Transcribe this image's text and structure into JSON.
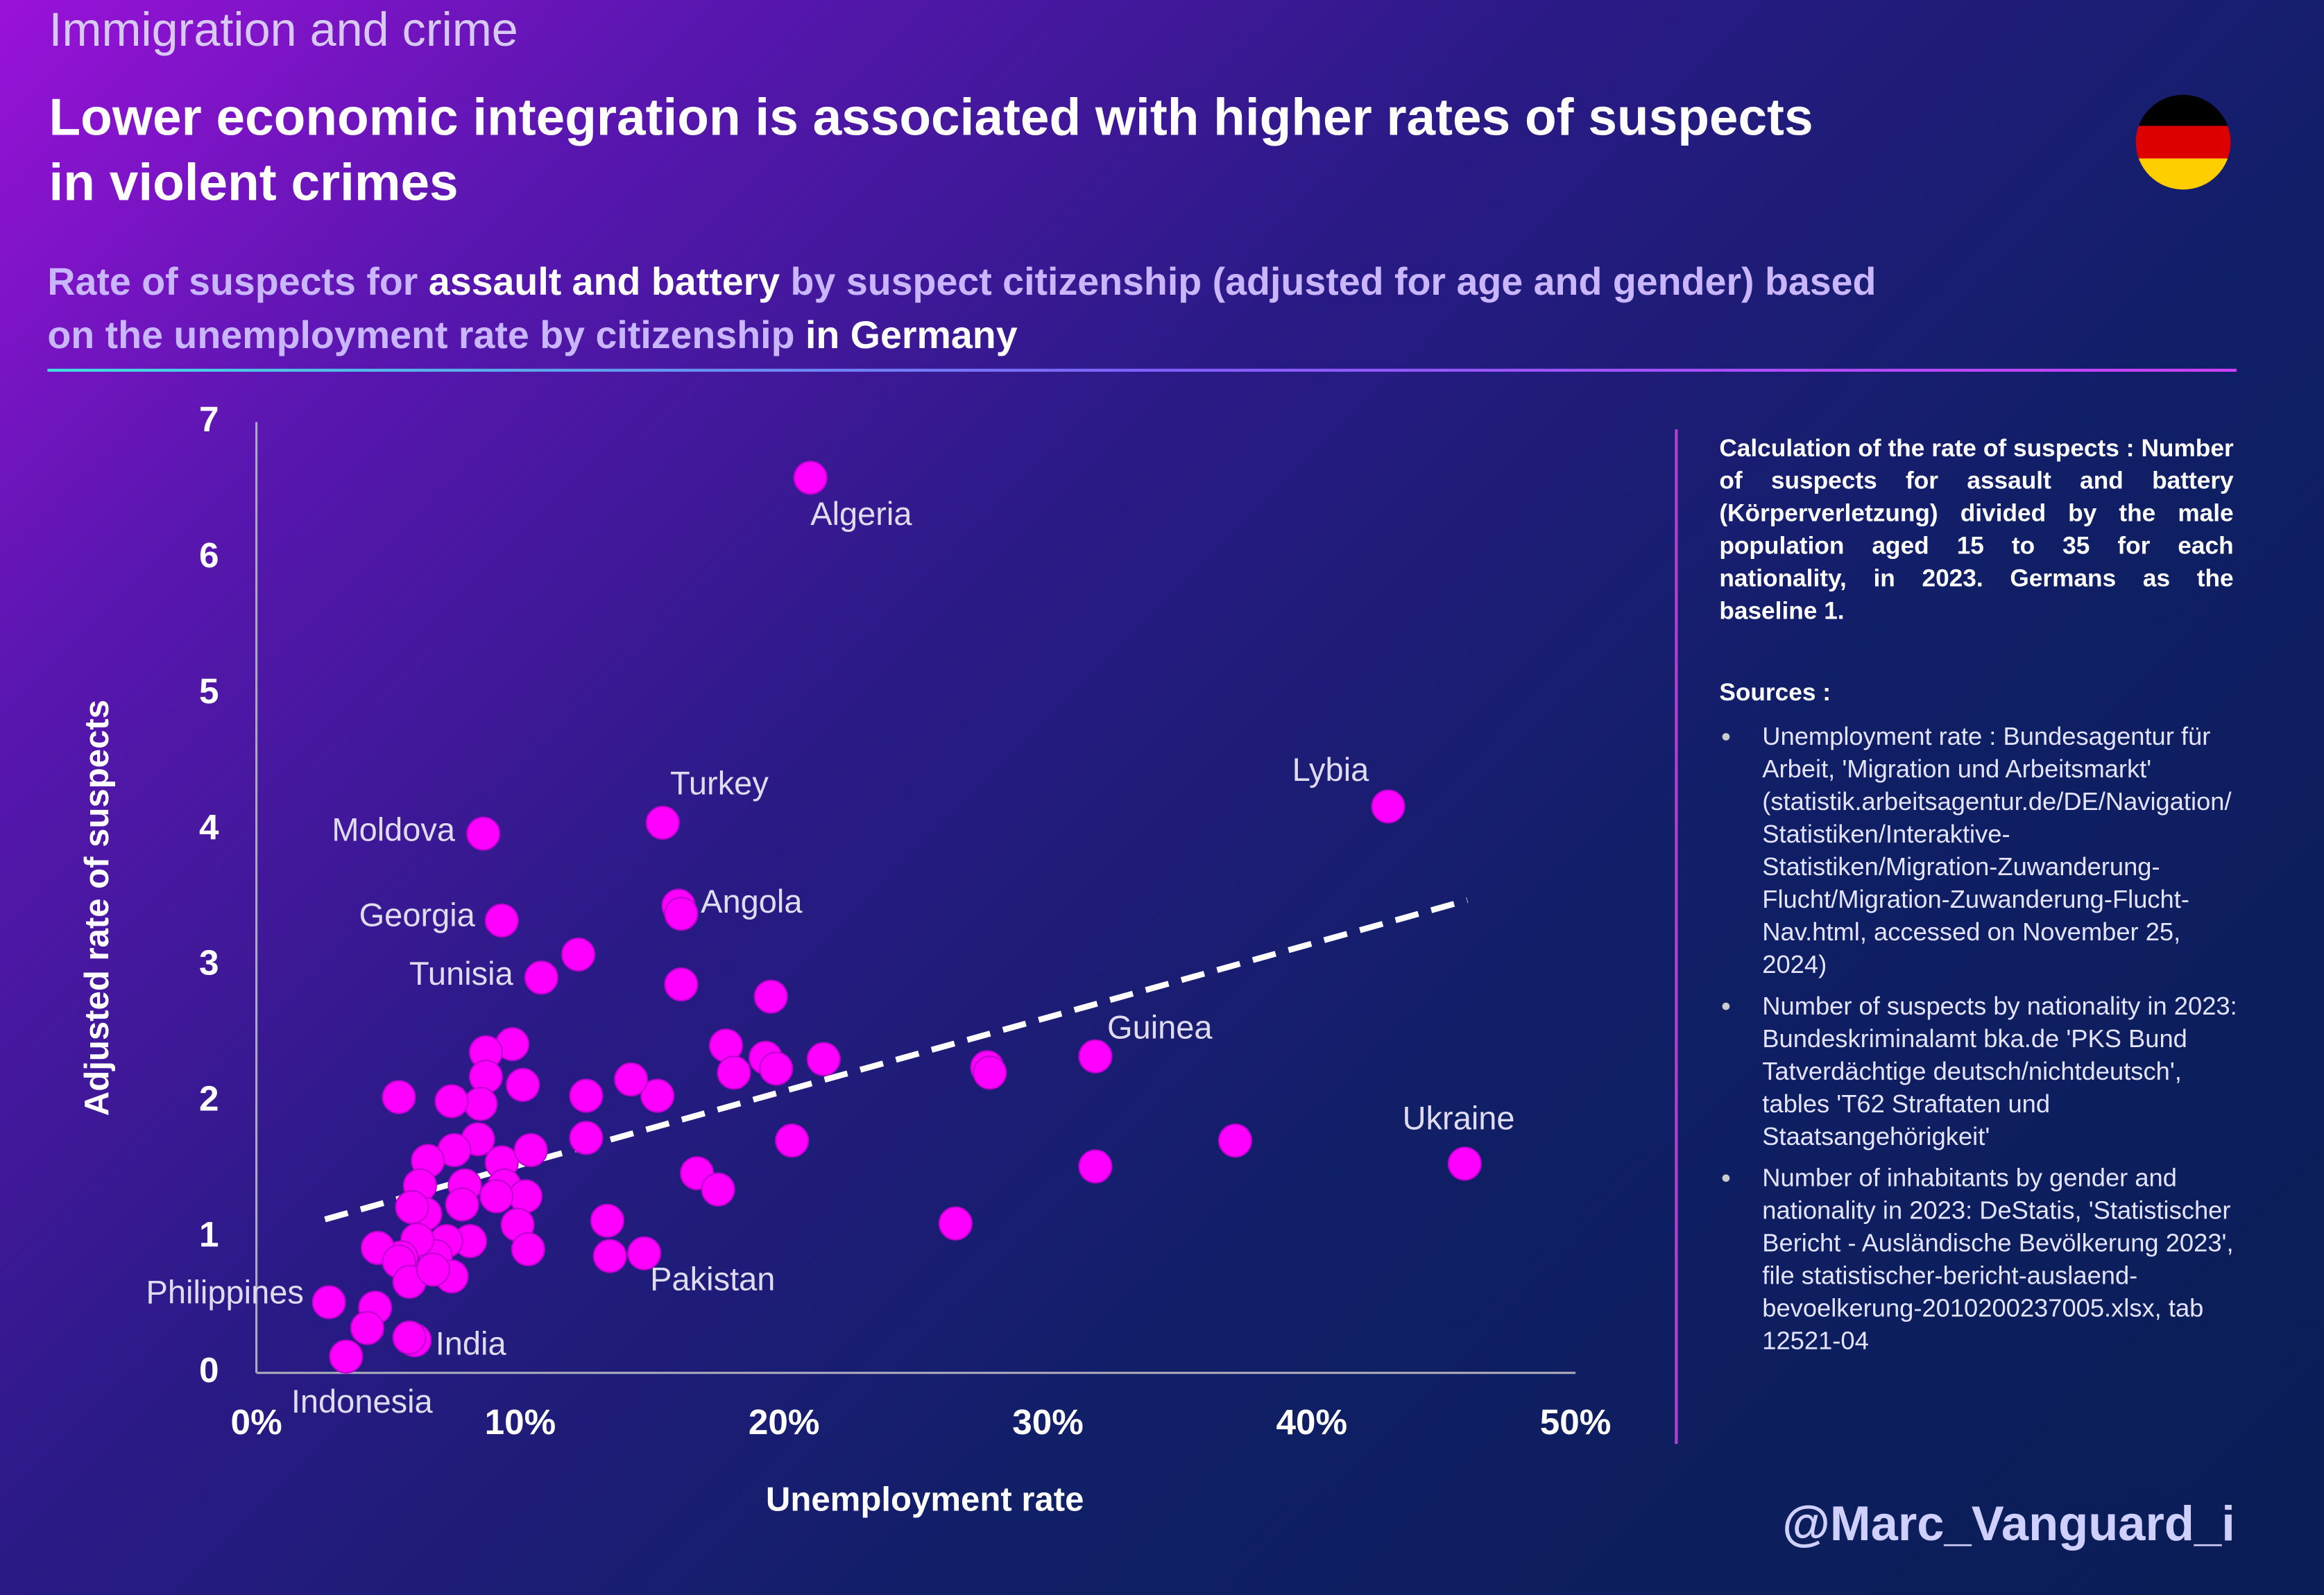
{
  "header": {
    "kicker": "Immigration and crime",
    "title_lines": [
      "Lower economic integration is associated with higher rates of suspects",
      "in violent crimes"
    ],
    "subtitle_lines": [
      [
        {
          "text": "Rate of suspects for ",
          "highlight": false
        },
        {
          "text": "assault and battery",
          "highlight": true
        },
        {
          "text": " by suspect citizenship (adjusted for age and gender) based",
          "highlight": false
        }
      ],
      [
        {
          "text": "on the unemployment rate by citizenship",
          "highlight": false
        },
        {
          "text": " in Germany",
          "highlight": true
        }
      ]
    ]
  },
  "chart_data": {
    "type": "scatter",
    "x_label": "Unemployment rate",
    "y_label": "Adjusted rate of suspects",
    "color": "#ff00ff",
    "xlim": [
      0,
      50
    ],
    "ylim": [
      0,
      7
    ],
    "xticks": [
      {
        "value": 0,
        "label": "0%"
      },
      {
        "value": 10,
        "label": "10%"
      },
      {
        "value": 20,
        "label": "20%"
      },
      {
        "value": 30,
        "label": "30%"
      },
      {
        "value": 40,
        "label": "40%"
      },
      {
        "value": 50,
        "label": "50%"
      }
    ],
    "yticks": [
      0,
      1,
      2,
      3,
      4,
      5,
      6,
      7
    ],
    "x": [
      21.0,
      42.9,
      15.4,
      8.6,
      9.3,
      16.0,
      10.8,
      31.8,
      45.8,
      14.7,
      2.75,
      3.4,
      6.0,
      16.1,
      12.2,
      16.1,
      19.5,
      17.8,
      18.1,
      19.3,
      19.7,
      21.5,
      20.3,
      16.7,
      17.5,
      26.5,
      27.7,
      27.8,
      31.8,
      37.1,
      15.2,
      14.2,
      12.5,
      12.5,
      13.3,
      13.4,
      9.7,
      8.7,
      8.7,
      8.5,
      10.1,
      8.4,
      7.4,
      5.4,
      7.5,
      6.5,
      7.9,
      9.3,
      10.4,
      9.4,
      10.2,
      9.1,
      9.9,
      10.3,
      6.2,
      6.4,
      5.9,
      7.8,
      8.1,
      7.2,
      6.8,
      6.1,
      5.5,
      4.6,
      5.4,
      5.8,
      7.4,
      6.7,
      4.5,
      4.2,
      5.8
    ],
    "values": [
      6.59,
      4.17,
      4.05,
      3.97,
      3.33,
      3.44,
      2.91,
      2.33,
      1.54,
      0.88,
      0.52,
      0.12,
      0.24,
      3.38,
      3.08,
      2.86,
      2.77,
      2.41,
      2.21,
      2.32,
      2.24,
      2.31,
      1.71,
      1.47,
      1.35,
      1.1,
      2.25,
      2.21,
      1.52,
      1.71,
      2.04,
      2.16,
      2.04,
      1.73,
      1.12,
      0.86,
      2.42,
      2.36,
      2.18,
      1.98,
      2.12,
      1.72,
      2.0,
      2.03,
      1.64,
      1.56,
      1.38,
      1.55,
      1.64,
      1.38,
      1.3,
      1.3,
      1.09,
      0.91,
      1.38,
      1.17,
      1.22,
      1.24,
      0.97,
      0.97,
      0.86,
      0.98,
      0.85,
      0.92,
      0.82,
      0.67,
      0.71,
      0.76,
      0.48,
      0.33,
      0.26
    ],
    "point_labels": [
      "Algeria",
      "Lybia",
      "Turkey",
      "Moldova",
      "Georgia",
      "Angola",
      "Tunisia",
      "Guinea",
      "Ukraine",
      "Pakistan",
      "Philippines",
      "Indonesia",
      "India",
      null,
      null,
      null,
      null,
      null,
      null,
      null,
      null,
      null,
      null,
      null,
      null,
      null,
      null,
      null,
      null,
      null,
      null,
      null,
      null,
      null,
      null,
      null,
      null,
      null,
      null,
      null,
      null,
      null,
      null,
      null,
      null,
      null,
      null,
      null,
      null,
      null,
      null,
      null,
      null,
      null,
      null,
      null,
      null,
      null,
      null,
      null,
      null,
      null,
      null,
      null,
      null,
      null,
      null,
      null,
      null,
      null,
      null
    ],
    "trend": {
      "x": [
        2.6,
        45.9
      ],
      "values": [
        1.13,
        3.48
      ]
    }
  },
  "notes": {
    "calculation": "Calculation of the rate of suspects : Number of suspects for assault and battery (Körperverletzung) divided by the male population aged 15 to 35 for each nationality, in 2023. Germans as the baseline 1.",
    "sources_heading": "Sources :",
    "sources": [
      "Unemployment rate : Bundesagentur für Arbeit, 'Migration und Arbeitsmarkt' (statistik.arbeitsagentur.de/DE/Navigation/Statistiken/Interaktive-Statistiken/Migration-Zuwanderung-Flucht/Migration-Zuwanderung-Flucht-Nav.html, accessed on November 25, 2024)",
      "Number of suspects by nationality in 2023: Bundeskriminalamt bka.de 'PKS Bund Tatverdächtige deutsch/nichtdeutsch', tables 'T62 Straftaten und Staatsangehörigkeit'",
      "Number of inhabitants by gender and nationality in 2023: DeStatis, 'Statistischer Bericht - Ausländische Bevölkerung 2023', file statistischer-bericht-auslaend-bevoelkerung-2010200237005.xlsx, tab 12521-04"
    ]
  },
  "credit": "@Marc_Vanguard_i"
}
